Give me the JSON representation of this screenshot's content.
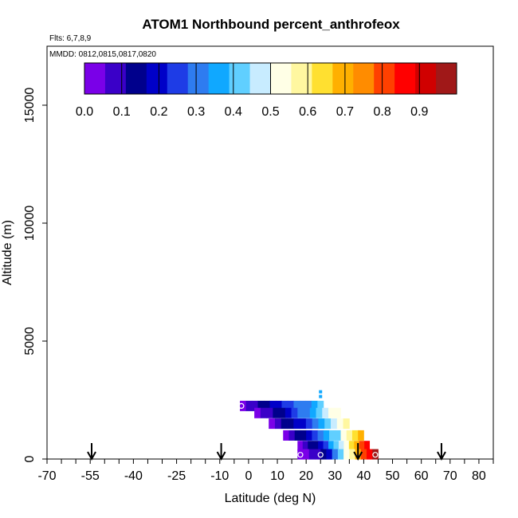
{
  "chart_data": {
    "type": "heatmap",
    "title": "ATOM1 Northbound percent_anthrofeox",
    "flights_note": "Flts: 6,7,8,9",
    "dates_note": "MMDD: 0812,0815,0817,0820",
    "xlabel": "Latitude (deg N)",
    "ylabel": "Altitude (m)",
    "xlim": [
      -70,
      85
    ],
    "ylim": [
      0,
      17500
    ],
    "x_ticks": [
      -70,
      -55,
      -40,
      -25,
      -10,
      0,
      10,
      20,
      30,
      40,
      50,
      60,
      70,
      80
    ],
    "x_minor_step": 5,
    "y_ticks": [
      0,
      5000,
      10000,
      15000
    ],
    "colorbar": {
      "min": 0.0,
      "max": 1.0,
      "tick_values": [
        0.0,
        0.1,
        0.2,
        0.3,
        0.4,
        0.5,
        0.6,
        0.7,
        0.8,
        0.9
      ],
      "tick_labels": [
        "0.0",
        "0.1",
        "0.2",
        "0.3",
        "0.4",
        "0.5",
        "0.6",
        "0.7",
        "0.8",
        "0.9"
      ],
      "colors": [
        "#7a00e8",
        "#3a00c8",
        "#00008c",
        "#0000c8",
        "#1e3ce6",
        "#2e7cf0",
        "#10a8ff",
        "#60cfff",
        "#c8ecff",
        "#ffffe6",
        "#fff7a0",
        "#ffe030",
        "#ffb000",
        "#ff8c00",
        "#ff4000",
        "#ff0000",
        "#d00000",
        "#a01818"
      ]
    },
    "rows": [
      {
        "alt": 2250,
        "x0": -3,
        "x1": 26,
        "v": [
          0.02,
          0.06,
          0.1,
          0.12,
          0.15,
          0.17,
          0.2,
          0.24,
          0.26,
          0.28,
          0.3,
          0.33,
          0.35,
          0.4
        ]
      },
      {
        "alt": 1950,
        "x0": 2,
        "x1": 32,
        "v": [
          0.05,
          0.08,
          0.11,
          0.14,
          0.16,
          0.2,
          0.25,
          0.3,
          0.33,
          0.37,
          0.4,
          0.45,
          0.5,
          0.55
        ]
      },
      {
        "alt": 1500,
        "x0": 7,
        "x1": 35,
        "v": [
          0.05,
          0.1,
          0.13,
          0.16,
          0.19,
          0.22,
          0.26,
          0.33,
          0.36,
          0.4,
          0.45,
          0.52,
          0.58
        ]
      },
      {
        "alt": 1000,
        "x0": 12,
        "x1": 40,
        "v": [
          0.05,
          0.09,
          0.12,
          0.15,
          0.18,
          0.23,
          0.3,
          0.34,
          0.4,
          0.44,
          0.5,
          0.58,
          0.65,
          0.72
        ]
      },
      {
        "alt": 550,
        "x0": 17,
        "x1": 42,
        "v": [
          0.05,
          0.08,
          0.12,
          0.16,
          0.2,
          0.25,
          0.34,
          0.42,
          0.48,
          0.55,
          0.62,
          0.72,
          0.8,
          0.88
        ]
      },
      {
        "alt": 200,
        "x0": 17,
        "x1": 45,
        "v": [
          0.02,
          0.04,
          0.06,
          0.08,
          0.12,
          0.2,
          0.3,
          0.4,
          0.5,
          0.6,
          0.7,
          0.8,
          0.88,
          0.95
        ]
      }
    ],
    "isolated_points": [
      {
        "lat": 25,
        "alt": 2850,
        "v": 0.35
      },
      {
        "lat": 25,
        "alt": 2650,
        "v": 0.35
      }
    ],
    "open_circles": [
      {
        "lat": -2.5,
        "alt": 2250
      },
      {
        "lat": 18,
        "alt": 180
      },
      {
        "lat": 25,
        "alt": 180
      },
      {
        "lat": 44,
        "alt": 180
      }
    ],
    "arrows": [
      -54.5,
      -9.5,
      38,
      67
    ],
    "grid": false,
    "legend_placement": "top (horizontal colorbar inside plot)"
  }
}
